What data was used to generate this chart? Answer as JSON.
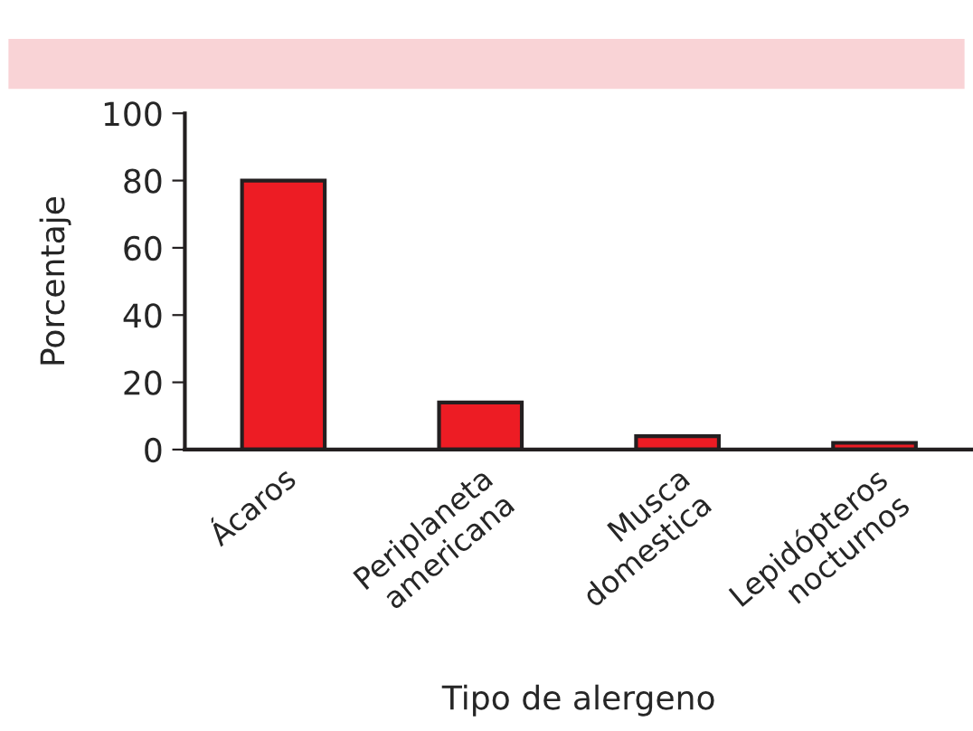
{
  "chart_data": {
    "type": "bar",
    "xlabel": "Tipo de alergeno",
    "ylabel": "Porcentaje",
    "categories": [
      "Ácaros",
      "Periplaneta\namericana",
      "Musca\ndomestica",
      "Lepidópteros\nnocturnos"
    ],
    "values": [
      80,
      14,
      4,
      2
    ],
    "color": "#ed1c24",
    "ylim": [
      0,
      100
    ],
    "yticks": [
      0,
      20,
      40,
      60,
      80,
      100
    ],
    "grid": false
  }
}
